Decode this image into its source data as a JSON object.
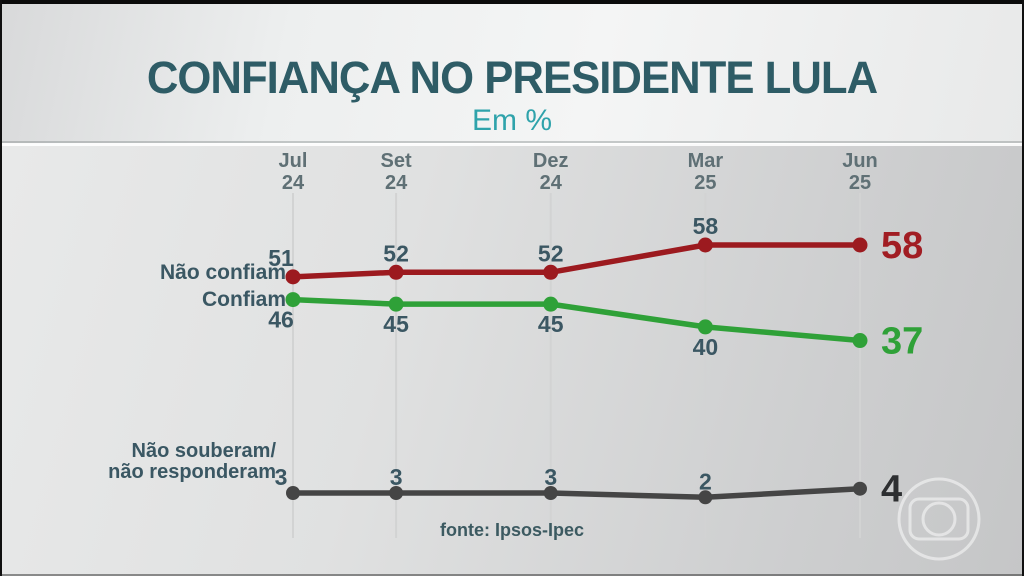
{
  "header": {
    "title": "CONFIANÇA NO PRESIDENTE LULA",
    "subtitle": "Em %"
  },
  "footer": {
    "source": "fonte: Ipsos-Ipec"
  },
  "branding": {
    "logo": "globo-logo"
  },
  "colors": {
    "title": "#2e5c66",
    "subtitle": "#2fa3ab",
    "value_labels": "#3b5763",
    "red_series": "#9c1a1f",
    "green_series": "#2fa138",
    "gray_series": "#454545"
  },
  "chart_data": {
    "type": "line",
    "title": "CONFIANÇA NO PRESIDENTE LULA",
    "unit": "Em %",
    "categories": [
      "Jul 24",
      "Set 24",
      "Dez 24",
      "Mar 25",
      "Jun 25"
    ],
    "tick_lines": [
      [
        "Jul",
        "24"
      ],
      [
        "Set",
        "24"
      ],
      [
        "Dez",
        "24"
      ],
      [
        "Mar",
        "25"
      ],
      [
        "Jun",
        "25"
      ]
    ],
    "x_month_offsets": [
      0,
      2,
      5,
      8,
      11
    ],
    "grid": "vertical",
    "legend_position": "left-of-series",
    "value_label_color": "#3b5763",
    "series": [
      {
        "name": "Não confiam",
        "values": [
          51,
          52,
          52,
          58,
          58
        ],
        "color": "#9c1a1f",
        "end_label_color": "#a11d23",
        "label_lines": [
          "Não confiam"
        ]
      },
      {
        "name": "Confiam",
        "values": [
          46,
          45,
          45,
          40,
          37
        ],
        "color": "#2fa138",
        "end_label_color": "#2fa138",
        "label_lines": [
          "Confiam"
        ]
      },
      {
        "name": "Não souberam/não responderam",
        "values": [
          3,
          3,
          3,
          2,
          4
        ],
        "color": "#454545",
        "end_label_color": "#2d2f31",
        "label_lines": [
          "Não souberam/",
          "não responderam"
        ]
      }
    ],
    "source": "fonte: Ipsos-Ipec"
  }
}
